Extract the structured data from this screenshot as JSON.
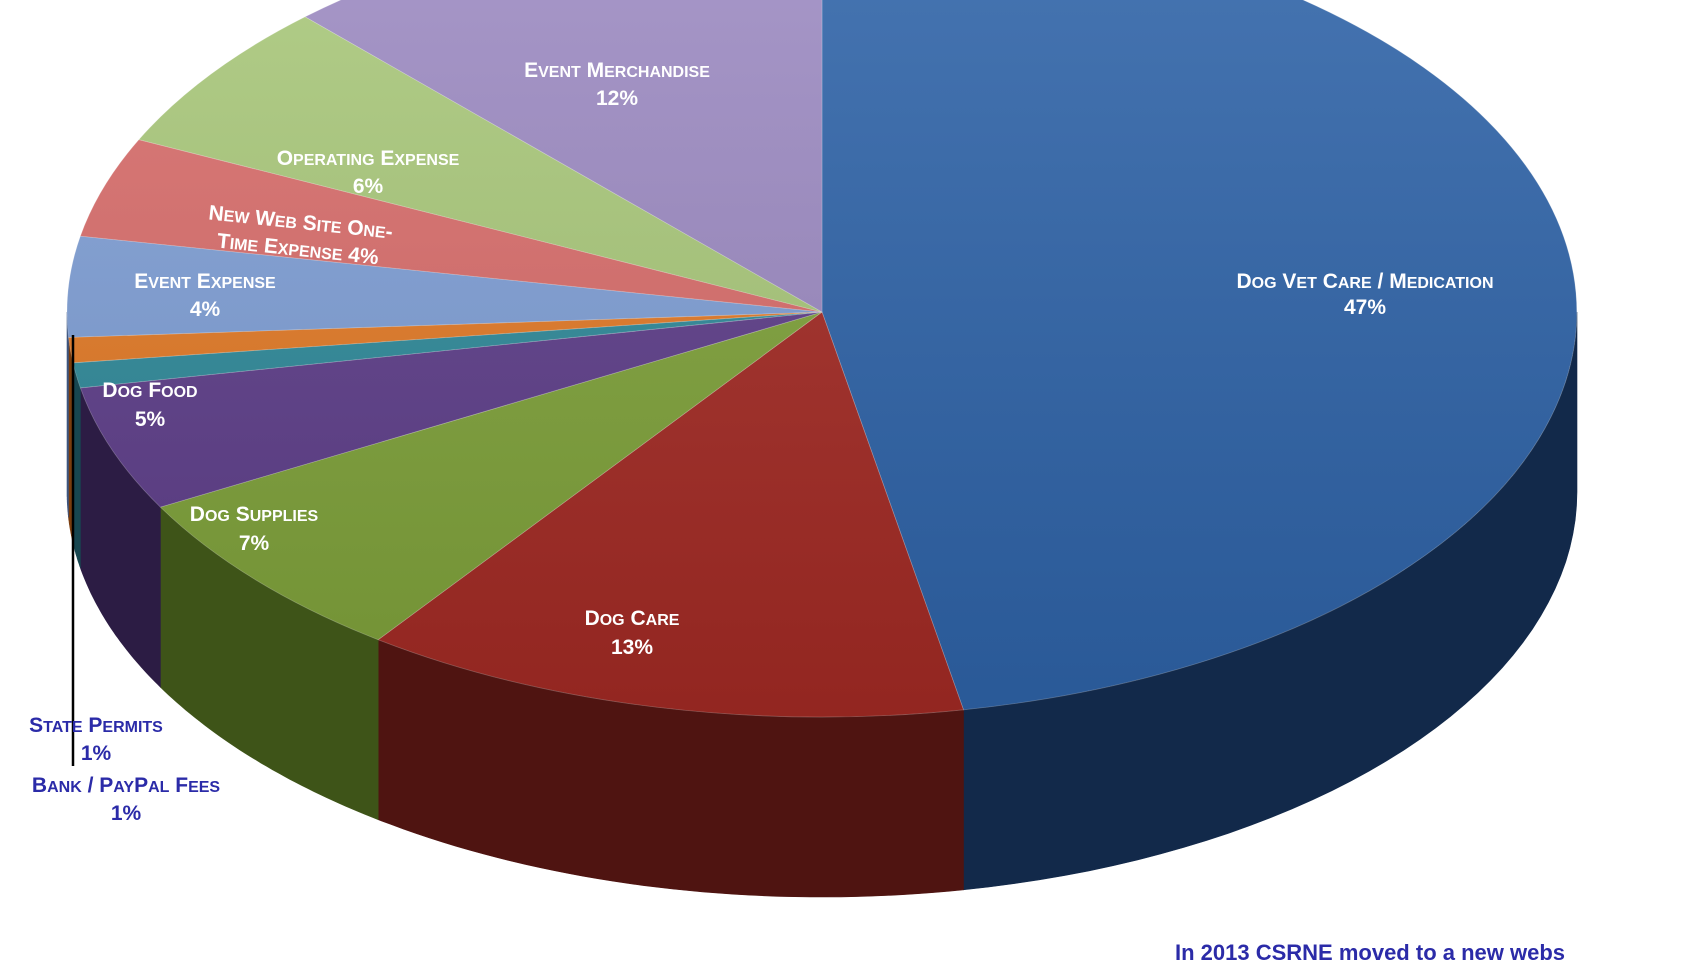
{
  "chart_data": {
    "type": "pie",
    "title": "",
    "slices": [
      {
        "label": "Dog Vet Care / Medication",
        "pct_label": "47%",
        "value": 47,
        "color": "#2e63a8",
        "dark": "#12294a"
      },
      {
        "label": "Dog Care",
        "pct_label": "13%",
        "value": 13,
        "color": "#a32a24",
        "dark": "#4f1411"
      },
      {
        "label": "Dog Supplies",
        "pct_label": "7%",
        "value": 7,
        "color": "#7fa23a",
        "dark": "#3e5418"
      },
      {
        "label": "Dog Food",
        "pct_label": "5%",
        "value": 5,
        "color": "#5e3e8a",
        "dark": "#2c1c44"
      },
      {
        "label": "Bank / PayPal Fees",
        "pct_label": "1%",
        "value": 1,
        "color": "#2f8a9a",
        "dark": "#174650"
      },
      {
        "label": "State Permits",
        "pct_label": "1%",
        "value": 1,
        "color": "#e37a26",
        "dark": "#7a3d0e"
      },
      {
        "label": "Event Expense",
        "pct_label": "4%",
        "value": 4,
        "color": "#7f9fd6",
        "dark": "#3d5580"
      },
      {
        "label": "New Web Site One-Time Expense",
        "pct_label": "4%",
        "value": 4,
        "color": "#d96d6b",
        "dark": "#7a3331"
      },
      {
        "label": "Operating Expense",
        "pct_label": "6%",
        "value": 6,
        "color": "#a9c87a",
        "dark": "#5a7338"
      },
      {
        "label": "Event Merchandise",
        "pct_label": "12%",
        "value": 12,
        "color": "#9c8ac2",
        "dark": "#4d4266"
      }
    ],
    "legend": "none",
    "label_style": "small-caps, on slices; two small slices labelled outside with leader line"
  },
  "footnote": "In 2013 CSRNE moved to a new webs"
}
